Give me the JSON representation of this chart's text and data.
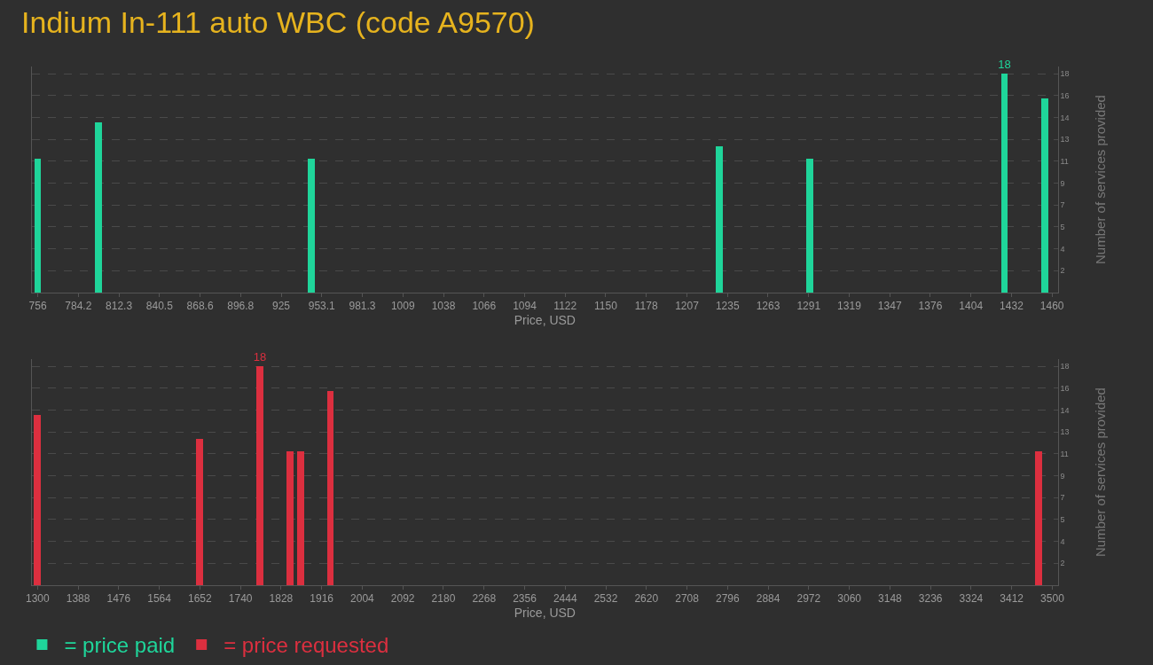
{
  "chart_data": [
    {
      "type": "bar",
      "title": "Indium In-111 auto WBC (code A9570)",
      "xlabel": "Price, USD",
      "ylabel": "Number of services provided",
      "x": [
        756,
        798,
        946,
        1229,
        1292,
        1427,
        1455
      ],
      "series": [
        {
          "name": "= price paid",
          "color": "#1fd59a",
          "values": [
            11,
            14,
            11,
            12,
            11,
            18,
            16
          ],
          "value_labels": [
            null,
            null,
            null,
            null,
            null,
            "18",
            null
          ]
        }
      ],
      "xlim": [
        752,
        1464
      ],
      "xticks": [
        756,
        {
          "value": 784.16,
          "label": "784.2"
        },
        {
          "value": 812.32,
          "label": "812.3"
        },
        {
          "value": 840.48,
          "label": "840.5"
        },
        {
          "value": 868.64,
          "label": "868.6"
        },
        896.8,
        {
          "value": 924.96,
          "label": "925"
        },
        {
          "value": 953.12,
          "label": "953.1"
        },
        {
          "value": 981.28,
          "label": "981.3"
        },
        {
          "value": 1009.44,
          "label": "1009"
        },
        {
          "value": 1037.6,
          "label": "1038"
        },
        {
          "value": 1065.76,
          "label": "1066"
        },
        {
          "value": 1093.92,
          "label": "1094"
        },
        {
          "value": 1122.08,
          "label": "1122"
        },
        {
          "value": 1150.24,
          "label": "1150"
        },
        {
          "value": 1178.4,
          "label": "1178"
        },
        {
          "value": 1206.56,
          "label": "1207"
        },
        {
          "value": 1234.72,
          "label": "1235"
        },
        {
          "value": 1262.88,
          "label": "1263"
        },
        {
          "value": 1291.04,
          "label": "1291"
        },
        {
          "value": 1319.2,
          "label": "1319"
        },
        {
          "value": 1347.36,
          "label": "1347"
        },
        {
          "value": 1375.52,
          "label": "1376"
        },
        {
          "value": 1403.68,
          "label": "1404"
        },
        {
          "value": 1431.84,
          "label": "1432"
        },
        1460
      ],
      "ylim": [
        0,
        18.6
      ],
      "yticks": [
        {
          "value": 1.8,
          "label": "2"
        },
        {
          "value": 3.6,
          "label": "4"
        },
        {
          "value": 5.4,
          "label": "5"
        },
        {
          "value": 7.2,
          "label": "7"
        },
        9,
        {
          "value": 10.8,
          "label": "11"
        },
        {
          "value": 12.6,
          "label": "13"
        },
        {
          "value": 14.4,
          "label": "14"
        },
        {
          "value": 16.2,
          "label": "16"
        },
        18
      ],
      "grid": "y",
      "legend": "bottom left"
    },
    {
      "type": "bar",
      "xlabel": "Price, USD",
      "ylabel": "Number of services provided",
      "x": [
        1300,
        1652,
        1782,
        1848,
        1871,
        1935,
        3470
      ],
      "series": [
        {
          "name": "= price requested",
          "color": "#dc2f3f",
          "values": [
            14,
            12,
            18,
            11,
            11,
            16,
            11
          ],
          "value_labels": [
            null,
            null,
            "18",
            null,
            null,
            null,
            null
          ]
        }
      ],
      "xlim": [
        1288,
        3512
      ],
      "xticks": [
        1300,
        1388,
        1476,
        1564,
        1652,
        1740,
        1828,
        1916,
        2004,
        2092,
        2180,
        2268,
        2356,
        2444,
        2532,
        2620,
        2708,
        2796,
        2884,
        2972,
        3060,
        3148,
        3236,
        3324,
        3412,
        3500
      ],
      "ylim": [
        0,
        18.6
      ],
      "yticks": [
        {
          "value": 1.8,
          "label": "2"
        },
        {
          "value": 3.6,
          "label": "4"
        },
        {
          "value": 5.4,
          "label": "5"
        },
        {
          "value": 7.2,
          "label": "7"
        },
        9,
        {
          "value": 10.8,
          "label": "11"
        },
        {
          "value": 12.6,
          "label": "13"
        },
        {
          "value": 14.4,
          "label": "14"
        },
        {
          "value": 16.2,
          "label": "16"
        },
        18
      ],
      "grid": "y",
      "legend": "bottom left"
    }
  ]
}
